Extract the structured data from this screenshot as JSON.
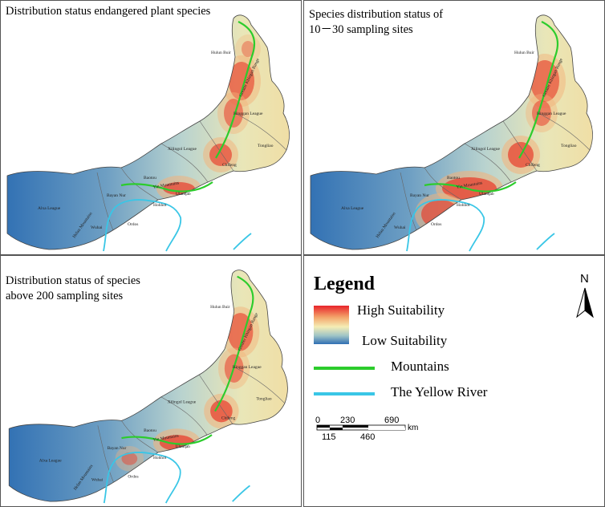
{
  "panels": [
    {
      "title": "Distribution status endangered plant species"
    },
    {
      "title_line1": "Species distribution status of",
      "title_line2": "10－30 sampling sites"
    },
    {
      "title_line1": "Distribution status of species",
      "title_line2": "above 200 sampling sites"
    }
  ],
  "place_labels": {
    "hulun": "Hulun Buir",
    "khingan": "Greater Khingan Range",
    "hinggan": "Hinggan League",
    "tongliao": "Tongliao",
    "xilingol": "Xilingol League",
    "chifeng": "Chifeng",
    "baotou": "Baotou",
    "yinmt": "Yin Mountains",
    "bayan": "Bayan Nur",
    "ulanqab": "Ulanqab",
    "hohhot": "Hohhot",
    "alxa": "Alxa League",
    "ordos": "Ordos",
    "wuhai": "Wuhai",
    "helan": "Helan Mountains"
  },
  "legend": {
    "title": "Legend",
    "high": "High Suitability",
    "low": "Low Suitability",
    "mountains": "Mountains",
    "yellow_river": "The Yellow River",
    "north": "N",
    "colors": {
      "high": "#e8232a",
      "low": "#2f6fb3",
      "mountains": "#2ccc2c",
      "river": "#39c6e6"
    }
  },
  "scale_bar": {
    "top_ticks": [
      "0",
      "230",
      "690"
    ],
    "bottom_ticks": [
      "115",
      "460"
    ],
    "unit": "km"
  }
}
